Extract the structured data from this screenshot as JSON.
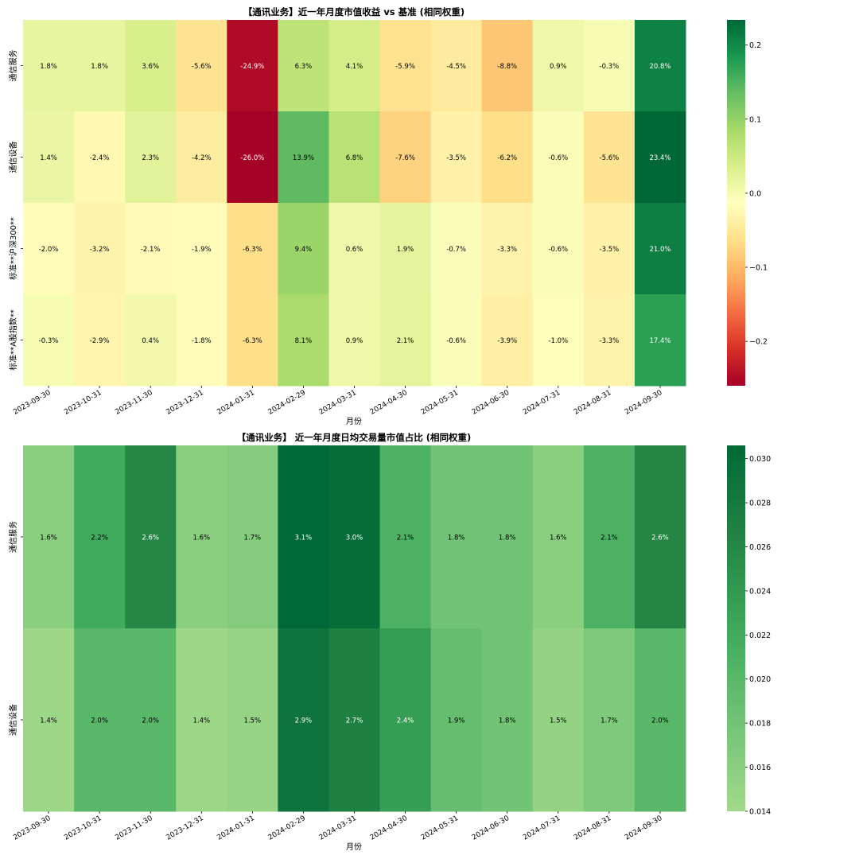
{
  "chart_data": [
    {
      "type": "heatmap",
      "title": "【通讯业务】近一年月度市值收益 vs 基准 (相同权重)",
      "xlabel": "月份",
      "ylabel": "",
      "colormap": "RdYlGn",
      "vmin": -0.26,
      "vmax": 0.234,
      "colorbar_ticks": [
        0.2,
        0.1,
        0.0,
        -0.1,
        -0.2
      ],
      "colorbar_tick_labels": [
        "0.2",
        "0.1",
        "0.0",
        "−0.1",
        "−0.2"
      ],
      "categories": [
        "2023-09-30",
        "2023-10-31",
        "2023-11-30",
        "2023-12-31",
        "2024-01-31",
        "2024-02-29",
        "2024-03-31",
        "2024-04-30",
        "2024-05-31",
        "2024-06-30",
        "2024-07-31",
        "2024-08-31",
        "2024-09-30"
      ],
      "rows": [
        "通信服务",
        "通信设备",
        "标准**沪深300**",
        "标准**A股指数**"
      ],
      "values": [
        [
          0.018,
          0.018,
          0.036,
          -0.056,
          -0.249,
          0.063,
          0.041,
          -0.059,
          -0.045,
          -0.088,
          0.009,
          -0.003,
          0.208
        ],
        [
          0.014,
          -0.024,
          0.023,
          -0.042,
          -0.26,
          0.139,
          0.068,
          -0.076,
          -0.035,
          -0.062,
          -0.006,
          -0.056,
          0.234
        ],
        [
          -0.02,
          -0.032,
          -0.021,
          -0.019,
          -0.063,
          0.094,
          0.006,
          0.019,
          -0.007,
          -0.033,
          -0.006,
          -0.035,
          0.21
        ],
        [
          -0.003,
          -0.029,
          0.004,
          -0.018,
          -0.063,
          0.081,
          0.009,
          0.021,
          -0.006,
          -0.039,
          -0.01,
          -0.033,
          0.174
        ]
      ],
      "annotations": [
        [
          "1.8%",
          "1.8%",
          "3.6%",
          "-5.6%",
          "-24.9%",
          "6.3%",
          "4.1%",
          "-5.9%",
          "-4.5%",
          "-8.8%",
          "0.9%",
          "-0.3%",
          "20.8%"
        ],
        [
          "1.4%",
          "-2.4%",
          "2.3%",
          "-4.2%",
          "-26.0%",
          "13.9%",
          "6.8%",
          "-7.6%",
          "-3.5%",
          "-6.2%",
          "-0.6%",
          "-5.6%",
          "23.4%"
        ],
        [
          "-2.0%",
          "-3.2%",
          "-2.1%",
          "-1.9%",
          "-6.3%",
          "9.4%",
          "0.6%",
          "1.9%",
          "-0.7%",
          "-3.3%",
          "-0.6%",
          "-3.5%",
          "21.0%"
        ],
        [
          "-0.3%",
          "-2.9%",
          "0.4%",
          "-1.8%",
          "-6.3%",
          "8.1%",
          "0.9%",
          "2.1%",
          "-0.6%",
          "-3.9%",
          "-1.0%",
          "-3.3%",
          "17.4%"
        ]
      ]
    },
    {
      "type": "heatmap",
      "title": "【通讯业务】 近一年月度日均交易量市值占比 (相同权重)",
      "xlabel": "月份",
      "ylabel": "",
      "colormap": "YlGn",
      "vmin": 0.014,
      "vmax": 0.0306,
      "colorbar_ticks": [
        0.03,
        0.028,
        0.026,
        0.024,
        0.022,
        0.02,
        0.018,
        0.016,
        0.014
      ],
      "colorbar_tick_labels": [
        "0.030",
        "0.028",
        "0.026",
        "0.024",
        "0.022",
        "0.020",
        "0.018",
        "0.016",
        "0.014"
      ],
      "categories": [
        "2023-09-30",
        "2023-10-31",
        "2023-11-30",
        "2023-12-31",
        "2024-01-31",
        "2024-02-29",
        "2024-03-31",
        "2024-04-30",
        "2024-05-31",
        "2024-06-30",
        "2024-07-31",
        "2024-08-31",
        "2024-09-30"
      ],
      "rows": [
        "通信服务",
        "通信设备"
      ],
      "values": [
        [
          0.016,
          0.022,
          0.026,
          0.016,
          0.0165,
          0.0306,
          0.03,
          0.021,
          0.018,
          0.018,
          0.016,
          0.021,
          0.0262
        ],
        [
          0.0145,
          0.02,
          0.02,
          0.0145,
          0.015,
          0.029,
          0.027,
          0.0235,
          0.019,
          0.018,
          0.0152,
          0.017,
          0.02
        ]
      ],
      "annotations": [
        [
          "1.6%",
          "2.2%",
          "2.6%",
          "1.6%",
          "1.7%",
          "3.1%",
          "3.0%",
          "2.1%",
          "1.8%",
          "1.8%",
          "1.6%",
          "2.1%",
          "2.6%"
        ],
        [
          "1.4%",
          "2.0%",
          "2.0%",
          "1.4%",
          "1.5%",
          "2.9%",
          "2.7%",
          "2.4%",
          "1.9%",
          "1.8%",
          "1.5%",
          "1.7%",
          "2.0%"
        ]
      ]
    }
  ]
}
